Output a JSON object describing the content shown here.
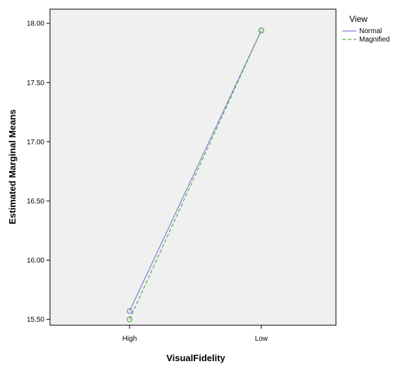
{
  "chart_data": {
    "type": "line",
    "title": "",
    "xlabel": "VisualFidelity",
    "ylabel": "Estimated Marginal Means",
    "categories": [
      "High",
      "Low"
    ],
    "ylim": [
      15.45,
      18.12
    ],
    "yticks": [
      "15.50",
      "16.00",
      "16.50",
      "17.00",
      "17.50",
      "18.00"
    ],
    "legend": {
      "title": "View",
      "position": "right"
    },
    "grid": false,
    "background_color": "#f0f0f0",
    "series": [
      {
        "name": "Normal",
        "values": [
          15.57,
          17.94
        ],
        "color": "#7b7fd4",
        "dash": "solid",
        "marker": "circle"
      },
      {
        "name": "Magnified",
        "values": [
          15.5,
          17.94
        ],
        "color": "#5aaa4e",
        "dash": "dashed",
        "marker": "circle"
      }
    ]
  }
}
